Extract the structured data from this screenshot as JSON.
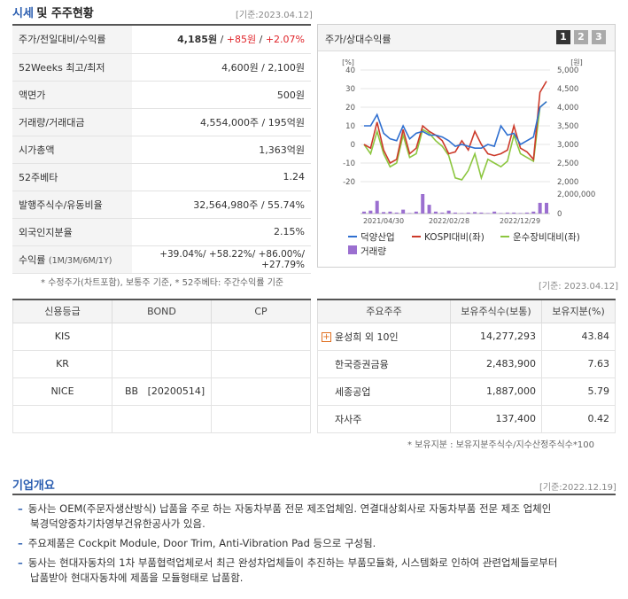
{
  "header": {
    "title_blue": "시세",
    "title_rest": "및 주주현황",
    "date": "[기준:2023.04.12]"
  },
  "quote": {
    "rows": [
      {
        "label": "주가/전일대비/수익률",
        "price": "4,185원",
        "sep1": " / ",
        "change": "+85원",
        "sep2": " / ",
        "rate": "+2.07%"
      },
      {
        "label": "52Weeks 최고/최저",
        "value": "4,600원 / 2,100원"
      },
      {
        "label": "액면가",
        "value": "500원"
      },
      {
        "label": "거래량/거래대금",
        "value": "4,554,000주 / 195억원"
      },
      {
        "label": "시가총액",
        "value": "1,363억원"
      },
      {
        "label": "52주베타",
        "value": "1.24"
      },
      {
        "label": "발행주식수/유동비율",
        "value": "32,564,980주 / 55.74%"
      },
      {
        "label": "외국인지분율",
        "value": "2.15%"
      }
    ],
    "returns_label": "수익률",
    "returns_sub": "(1M/3M/6M/1Y)",
    "returns_value": "+39.04%/ +58.22%/ +86.00%/ +27.79%",
    "footnote": "* 수정주가(차트포함), 보통주 기준, * 52주베타: 주간수익률 기준"
  },
  "chart_panel": {
    "title": "주가/상대수익률",
    "pages": [
      "1",
      "2",
      "3"
    ],
    "legend": {
      "stock": "덕양산업",
      "kospi": "KOSPI대비(좌)",
      "sector": "운수장비대비(좌)",
      "volume": "거래량"
    }
  },
  "chart_data": {
    "type": "line",
    "x_tick_labels": [
      "2021/04/30",
      "2022/02/28",
      "2022/12/29"
    ],
    "left_axis": {
      "unit": "[%]",
      "ticks": [
        -20,
        -10,
        0,
        10,
        20,
        30,
        40
      ],
      "ylim": [
        -20,
        40
      ]
    },
    "right_axis": {
      "unit": "[원]",
      "ticks": [
        2000,
        2500,
        3000,
        3500,
        4000,
        4500,
        5000
      ],
      "ylim": [
        2000,
        5000
      ]
    },
    "volume_axis": {
      "ticks": [
        "2,000,000",
        "0"
      ],
      "ylim": [
        0,
        2000000
      ]
    },
    "series": [
      {
        "name": "덕양산업",
        "axis": "right",
        "color": "#2f6fd0",
        "values": [
          3500,
          3500,
          3800,
          3300,
          3150,
          3100,
          3500,
          3150,
          3300,
          3350,
          3250,
          3250,
          3200,
          3100,
          2950,
          3000,
          2950,
          2900,
          2900,
          3000,
          2950,
          3500,
          3250,
          3300,
          3000,
          3100,
          3200,
          4000,
          4150
        ]
      },
      {
        "name": "KOSPI대비(좌)",
        "axis": "left",
        "color": "#cc3a2a",
        "values": [
          0,
          -2,
          12,
          -3,
          -10,
          -8,
          8,
          -5,
          -2,
          10,
          7,
          5,
          2,
          -5,
          -4,
          2,
          -3,
          7,
          0,
          -5,
          -6,
          -5,
          -3,
          10,
          -2,
          -4,
          -8,
          28,
          34
        ]
      },
      {
        "name": "운수장비대비(좌)",
        "axis": "left",
        "color": "#8cc63f",
        "values": [
          0,
          -5,
          7,
          -5,
          -12,
          -10,
          5,
          -7,
          -5,
          8,
          6,
          2,
          -1,
          -6,
          -18,
          -19,
          -14,
          -5,
          -18,
          -8,
          -10,
          -12,
          -9,
          5,
          -5,
          -7,
          -9,
          20,
          23
        ]
      },
      {
        "name": "거래량",
        "axis": "volume",
        "color": "#9b6fd0",
        "values": [
          200000,
          300000,
          1300000,
          150000,
          200000,
          100000,
          400000,
          50000,
          200000,
          2000000,
          900000,
          200000,
          100000,
          300000,
          100000,
          50000,
          100000,
          150000,
          100000,
          50000,
          200000,
          50000,
          100000,
          100000,
          50000,
          100000,
          200000,
          1100000,
          1100000
        ]
      }
    ]
  },
  "credit": {
    "headers": [
      "신용등급",
      "BOND",
      "CP"
    ],
    "rows": [
      {
        "agency": "KIS",
        "bond": "",
        "cp": ""
      },
      {
        "agency": "KR",
        "bond": "",
        "cp": ""
      },
      {
        "agency": "NICE",
        "bond": "BB   [20200514]",
        "cp": ""
      }
    ]
  },
  "holders": {
    "date": "[기준: 2023.04.12]",
    "headers": [
      "주요주주",
      "보유주식수(보통)",
      "보유지분(%)"
    ],
    "rows": [
      {
        "name": "윤성희 외 10인",
        "shares": "14,277,293",
        "pct": "43.84",
        "expand": "+"
      },
      {
        "name": "한국증권금융",
        "shares": "2,483,900",
        "pct": "7.63"
      },
      {
        "name": "세종공업",
        "shares": "1,887,000",
        "pct": "5.79"
      },
      {
        "name": "자사주",
        "shares": "137,400",
        "pct": "0.42"
      }
    ],
    "footnote": "* 보유지분 : 보유지분주식수/지수산정주식수*100"
  },
  "company": {
    "title": "기업개요",
    "date": "[기준:2022.12.19]",
    "items": [
      {
        "line1": "동사는 OEM(주문자생산방식) 납품을 주로 하는 자동차부품 전문 제조업체임. 연결대상회사로 자동차부품 전문 제조 업체인",
        "line2": "북경덕양중차기차영부건유한공사가 있음."
      },
      {
        "line1": "주요제품은 Cockpit Module, Door Trim, Anti-Vibration Pad 등으로 구성됨.",
        "line2": ""
      },
      {
        "line1": "동사는 현대자동차의 1차 부품협력업체로서 최근 완성차업체들이 추진하는 부품모듈화, 시스템화로 인하여 관련업체들로부터",
        "line2": "납품받아 현대자동차에 제품을 모듈형태로 납품함."
      }
    ]
  }
}
